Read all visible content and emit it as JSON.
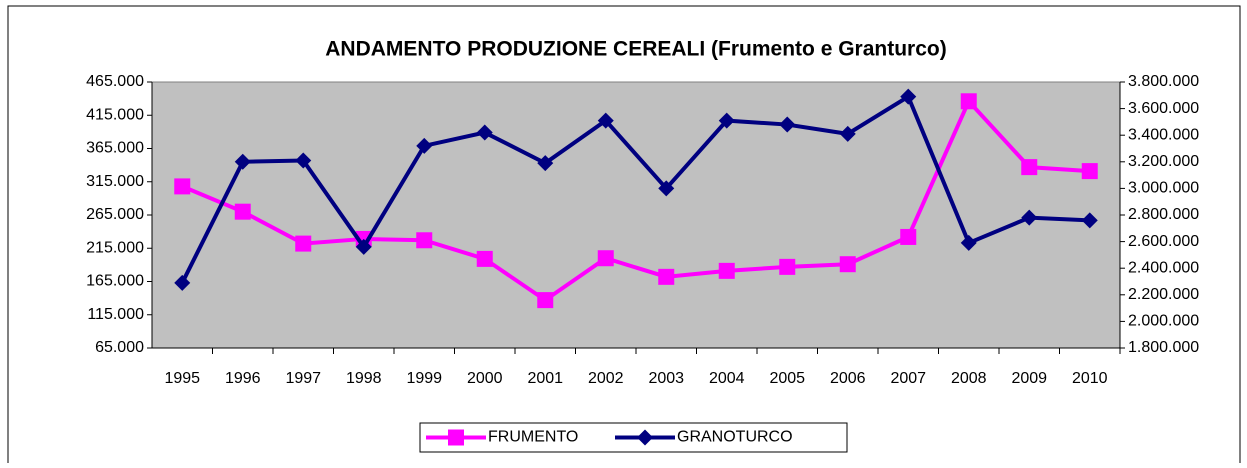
{
  "chart_data": {
    "type": "line",
    "title": "ANDAMENTO PRODUZIONE CEREALI (Frumento e Granturco)",
    "categories": [
      "1995",
      "1996",
      "1997",
      "1998",
      "1999",
      "2000",
      "2001",
      "2002",
      "2003",
      "2004",
      "2005",
      "2006",
      "2007",
      "2008",
      "2009",
      "2010"
    ],
    "series": [
      {
        "name": "FRUMENTO",
        "color": "#ff00ff",
        "axis": "y",
        "values": [
          308000,
          270000,
          222000,
          229000,
          227000,
          199000,
          137000,
          200000,
          172000,
          181000,
          187000,
          191000,
          232000,
          436000,
          337000,
          331000
        ]
      },
      {
        "name": "GRANOTURCO",
        "color": "#000080",
        "axis": "y2",
        "values": [
          2290000,
          3200000,
          3210000,
          2560000,
          3320000,
          3420000,
          3190000,
          3510000,
          3000000,
          3510000,
          3480000,
          3410000,
          3690000,
          2590000,
          2780000,
          2760000
        ]
      }
    ],
    "ylim": [
      65000,
      465000
    ],
    "yticks": [
      {
        "value": 65000,
        "label": "65.000"
      },
      {
        "value": 115000,
        "label": "115.000"
      },
      {
        "value": 165000,
        "label": "165.000"
      },
      {
        "value": 215000,
        "label": "215.000"
      },
      {
        "value": 265000,
        "label": "265.000"
      },
      {
        "value": 315000,
        "label": "315.000"
      },
      {
        "value": 365000,
        "label": "365.000"
      },
      {
        "value": 415000,
        "label": "415.000"
      },
      {
        "value": 465000,
        "label": "465.000"
      }
    ],
    "y2lim": [
      1800000,
      3800000
    ],
    "y2ticks": [
      {
        "value": 1800000,
        "label": "1.800.000"
      },
      {
        "value": 2000000,
        "label": "2.000.000"
      },
      {
        "value": 2200000,
        "label": "2.200.000"
      },
      {
        "value": 2400000,
        "label": "2.400.000"
      },
      {
        "value": 2600000,
        "label": "2.600.000"
      },
      {
        "value": 2800000,
        "label": "2.800.000"
      },
      {
        "value": 3000000,
        "label": "3.000.000"
      },
      {
        "value": 3200000,
        "label": "3.200.000"
      },
      {
        "value": 3400000,
        "label": "3.400.000"
      },
      {
        "value": 3600000,
        "label": "3.600.000"
      },
      {
        "value": 3800000,
        "label": "3.800.000"
      }
    ],
    "legend": "bottom"
  }
}
